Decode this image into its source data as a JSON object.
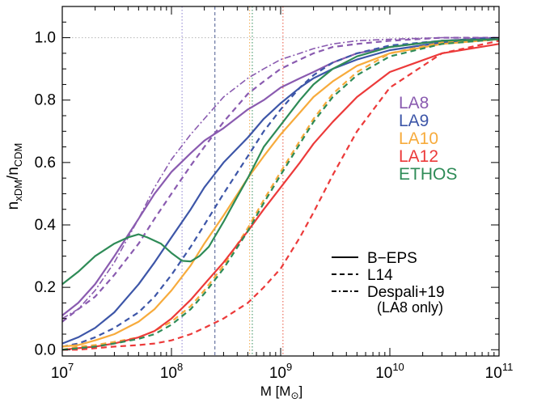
{
  "chart_data": {
    "type": "line",
    "title": "",
    "xlabel": "M [M",
    "xlabel_sub": "⊙",
    "xlabel_close": "]",
    "ylabel_parts": [
      "n",
      "xDM",
      "/n",
      "CDM"
    ],
    "xscale": "log",
    "xlim": [
      10000000.0,
      100000000000.0
    ],
    "ylim": [
      -0.02,
      1.1
    ],
    "x_ticks": [
      {
        "value": 10000000.0,
        "base": "10",
        "exp": "7"
      },
      {
        "value": 100000000.0,
        "base": "10",
        "exp": "8"
      },
      {
        "value": 1000000000.0,
        "base": "10",
        "exp": "9"
      },
      {
        "value": 10000000000.0,
        "base": "10",
        "exp": "10"
      },
      {
        "value": 100000000000.0,
        "base": "10",
        "exp": "11"
      }
    ],
    "y_ticks": [
      {
        "value": 0.0,
        "label": "0.0"
      },
      {
        "value": 0.2,
        "label": "0.2"
      },
      {
        "value": 0.4,
        "label": "0.4"
      },
      {
        "value": 0.6,
        "label": "0.6"
      },
      {
        "value": 0.8,
        "label": "0.8"
      },
      {
        "value": 1.0,
        "label": "1.0"
      }
    ],
    "reference_lines": [
      {
        "axis": "y",
        "value": 1.0,
        "color": "#b5b5b5",
        "style": "dotted"
      },
      {
        "axis": "x",
        "value": 125000000.0,
        "color": "#8a7fd0",
        "style": "dotted"
      },
      {
        "axis": "x",
        "value": 250000000.0,
        "color": "#4a5a8f",
        "style": "dashed"
      },
      {
        "axis": "x",
        "value": 520000000.0,
        "color": "#f2a84a",
        "style": "dotted"
      },
      {
        "axis": "x",
        "value": 550000000.0,
        "color": "#2e8b57",
        "style": "dotted"
      },
      {
        "axis": "x",
        "value": 1050000000.0,
        "color": "#e8503a",
        "style": "dotted"
      }
    ],
    "color_legend": [
      {
        "label": "LA8",
        "color": "#8a5bb0"
      },
      {
        "label": "LA9",
        "color": "#3d56a8"
      },
      {
        "label": "LA10",
        "color": "#f7ab3c"
      },
      {
        "label": "LA12",
        "color": "#ec3a3a"
      },
      {
        "label": "ETHOS",
        "color": "#2e8b57"
      }
    ],
    "style_legend": [
      {
        "label": "B−EPS",
        "style": "solid"
      },
      {
        "label": "L14",
        "style": "dashed"
      },
      {
        "label": "Despali+19",
        "style": "dashdot"
      }
    ],
    "style_legend_note": "(LA8 only)",
    "series": [
      {
        "name": "LA8 B-EPS",
        "model": "LA8",
        "color": "#8a5bb0",
        "style": "solid",
        "x": [
          10000000.0,
          14000000.0,
          20000000.0,
          30000000.0,
          50000000.0,
          70000000.0,
          100000000.0,
          150000000.0,
          200000000.0,
          300000000.0,
          500000000.0,
          700000000.0,
          1000000000.0,
          1500000000.0,
          2000000000.0,
          3000000000.0,
          5000000000.0,
          10000000000.0,
          30000000000.0,
          100000000000.0
        ],
        "y": [
          0.11,
          0.15,
          0.21,
          0.3,
          0.42,
          0.5,
          0.57,
          0.63,
          0.67,
          0.71,
          0.77,
          0.8,
          0.84,
          0.87,
          0.89,
          0.92,
          0.95,
          0.97,
          0.99,
          1.0
        ]
      },
      {
        "name": "LA8 L14",
        "model": "LA8",
        "color": "#8a5bb0",
        "style": "dashed",
        "x": [
          10000000.0,
          14000000.0,
          20000000.0,
          30000000.0,
          50000000.0,
          70000000.0,
          100000000.0,
          150000000.0,
          200000000.0,
          300000000.0,
          500000000.0,
          700000000.0,
          1000000000.0,
          1500000000.0,
          2000000000.0,
          3000000000.0,
          5000000000.0,
          10000000000.0,
          30000000000.0,
          100000000000.0
        ],
        "y": [
          0.09,
          0.13,
          0.17,
          0.24,
          0.34,
          0.42,
          0.5,
          0.59,
          0.65,
          0.73,
          0.82,
          0.86,
          0.9,
          0.93,
          0.95,
          0.97,
          0.98,
          0.99,
          1.0,
          1.0
        ]
      },
      {
        "name": "LA8 Despali+19",
        "model": "LA8",
        "color": "#8a5bb0",
        "style": "dashdot",
        "x": [
          10000000.0,
          14000000.0,
          20000000.0,
          30000000.0,
          50000000.0,
          70000000.0,
          100000000.0,
          150000000.0,
          200000000.0,
          300000000.0,
          500000000.0,
          700000000.0,
          1000000000.0,
          1500000000.0,
          2000000000.0,
          3000000000.0,
          5000000000.0,
          10000000000.0,
          30000000000.0,
          100000000000.0
        ],
        "y": [
          0.1,
          0.13,
          0.19,
          0.28,
          0.42,
          0.52,
          0.61,
          0.69,
          0.74,
          0.81,
          0.87,
          0.9,
          0.93,
          0.95,
          0.965,
          0.98,
          0.99,
          0.995,
          1.0,
          1.0
        ]
      },
      {
        "name": "LA9 B-EPS",
        "model": "LA9",
        "color": "#3d56a8",
        "style": "solid",
        "x": [
          10000000.0,
          14000000.0,
          20000000.0,
          30000000.0,
          50000000.0,
          70000000.0,
          100000000.0,
          150000000.0,
          200000000.0,
          300000000.0,
          500000000.0,
          700000000.0,
          1000000000.0,
          1500000000.0,
          2000000000.0,
          3000000000.0,
          5000000000.0,
          10000000000.0,
          30000000000.0,
          100000000000.0
        ],
        "y": [
          0.02,
          0.04,
          0.07,
          0.12,
          0.21,
          0.28,
          0.36,
          0.45,
          0.52,
          0.6,
          0.68,
          0.74,
          0.79,
          0.84,
          0.87,
          0.9,
          0.93,
          0.96,
          0.985,
          0.995
        ]
      },
      {
        "name": "LA9 L14",
        "model": "LA9",
        "color": "#3d56a8",
        "style": "dashed",
        "x": [
          10000000.0,
          14000000.0,
          20000000.0,
          30000000.0,
          50000000.0,
          70000000.0,
          100000000.0,
          150000000.0,
          200000000.0,
          300000000.0,
          500000000.0,
          700000000.0,
          1000000000.0,
          1500000000.0,
          2000000000.0,
          3000000000.0,
          5000000000.0,
          10000000000.0,
          30000000000.0,
          100000000000.0
        ],
        "y": [
          0.01,
          0.02,
          0.04,
          0.07,
          0.12,
          0.17,
          0.24,
          0.33,
          0.4,
          0.5,
          0.62,
          0.7,
          0.77,
          0.84,
          0.88,
          0.92,
          0.95,
          0.975,
          0.99,
          1.0
        ]
      },
      {
        "name": "LA10 B-EPS",
        "model": "LA10",
        "color": "#f7ab3c",
        "style": "solid",
        "x": [
          10000000.0,
          14000000.0,
          20000000.0,
          30000000.0,
          50000000.0,
          70000000.0,
          100000000.0,
          150000000.0,
          200000000.0,
          300000000.0,
          500000000.0,
          700000000.0,
          1000000000.0,
          1500000000.0,
          2000000000.0,
          3000000000.0,
          5000000000.0,
          10000000000.0,
          30000000000.0,
          100000000000.0
        ],
        "y": [
          0.01,
          0.015,
          0.03,
          0.05,
          0.09,
          0.13,
          0.19,
          0.27,
          0.34,
          0.43,
          0.55,
          0.62,
          0.69,
          0.76,
          0.81,
          0.86,
          0.91,
          0.95,
          0.98,
          0.995
        ]
      },
      {
        "name": "LA10 L14",
        "model": "LA10",
        "color": "#f7ab3c",
        "style": "dashed",
        "x": [
          10000000.0,
          14000000.0,
          20000000.0,
          30000000.0,
          50000000.0,
          70000000.0,
          100000000.0,
          150000000.0,
          200000000.0,
          300000000.0,
          500000000.0,
          700000000.0,
          1000000000.0,
          1500000000.0,
          2000000000.0,
          3000000000.0,
          5000000000.0,
          10000000000.0,
          30000000000.0,
          100000000000.0
        ],
        "y": [
          0.0,
          0.01,
          0.015,
          0.025,
          0.04,
          0.06,
          0.09,
          0.14,
          0.19,
          0.27,
          0.39,
          0.48,
          0.57,
          0.67,
          0.74,
          0.82,
          0.89,
          0.95,
          0.985,
          0.995
        ]
      },
      {
        "name": "LA12 B-EPS",
        "model": "LA12",
        "color": "#ec3a3a",
        "style": "solid",
        "x": [
          10000000.0,
          14000000.0,
          20000000.0,
          30000000.0,
          50000000.0,
          70000000.0,
          100000000.0,
          150000000.0,
          200000000.0,
          300000000.0,
          500000000.0,
          700000000.0,
          1000000000.0,
          1500000000.0,
          2000000000.0,
          3000000000.0,
          5000000000.0,
          10000000000.0,
          30000000000.0,
          100000000000.0
        ],
        "y": [
          0.0,
          0.005,
          0.01,
          0.02,
          0.04,
          0.06,
          0.1,
          0.16,
          0.21,
          0.28,
          0.38,
          0.45,
          0.52,
          0.6,
          0.66,
          0.73,
          0.81,
          0.89,
          0.95,
          0.98
        ]
      },
      {
        "name": "LA12 L14",
        "model": "LA12",
        "color": "#ec3a3a",
        "style": "dashed",
        "x": [
          10000000.0,
          14000000.0,
          20000000.0,
          30000000.0,
          50000000.0,
          70000000.0,
          100000000.0,
          150000000.0,
          200000000.0,
          300000000.0,
          500000000.0,
          700000000.0,
          1000000000.0,
          1500000000.0,
          2000000000.0,
          3000000000.0,
          5000000000.0,
          10000000000.0,
          30000000000.0,
          100000000000.0
        ],
        "y": [
          0.0,
          0.0,
          0.005,
          0.01,
          0.015,
          0.02,
          0.03,
          0.05,
          0.07,
          0.1,
          0.15,
          0.2,
          0.26,
          0.36,
          0.44,
          0.56,
          0.7,
          0.84,
          0.95,
          0.99
        ]
      },
      {
        "name": "ETHOS B-EPS",
        "model": "ETHOS",
        "color": "#2e8b57",
        "style": "solid",
        "x": [
          10000000.0,
          14000000.0,
          20000000.0,
          30000000.0,
          40000000.0,
          50000000.0,
          60000000.0,
          80000000.0,
          100000000.0,
          125000000.0,
          150000000.0,
          180000000.0,
          220000000.0,
          300000000.0,
          400000000.0,
          500000000.0,
          700000000.0,
          1000000000.0,
          1500000000.0,
          2000000000.0,
          3000000000.0,
          5000000000.0,
          10000000000.0,
          30000000000.0,
          100000000000.0
        ],
        "y": [
          0.21,
          0.25,
          0.3,
          0.34,
          0.36,
          0.37,
          0.36,
          0.34,
          0.31,
          0.285,
          0.283,
          0.3,
          0.33,
          0.41,
          0.49,
          0.55,
          0.65,
          0.72,
          0.8,
          0.85,
          0.9,
          0.94,
          0.97,
          0.99,
          0.995
        ]
      },
      {
        "name": "ETHOS L14",
        "model": "ETHOS",
        "color": "#2e8b57",
        "style": "dashed",
        "x": [
          10000000.0,
          14000000.0,
          20000000.0,
          30000000.0,
          50000000.0,
          70000000.0,
          100000000.0,
          150000000.0,
          200000000.0,
          300000000.0,
          500000000.0,
          700000000.0,
          1000000000.0,
          1500000000.0,
          2000000000.0,
          3000000000.0,
          5000000000.0,
          10000000000.0,
          30000000000.0,
          100000000000.0
        ],
        "y": [
          0.0,
          0.005,
          0.01,
          0.02,
          0.035,
          0.05,
          0.08,
          0.13,
          0.18,
          0.26,
          0.38,
          0.47,
          0.56,
          0.66,
          0.73,
          0.81,
          0.88,
          0.94,
          0.98,
          0.995
        ]
      }
    ]
  }
}
